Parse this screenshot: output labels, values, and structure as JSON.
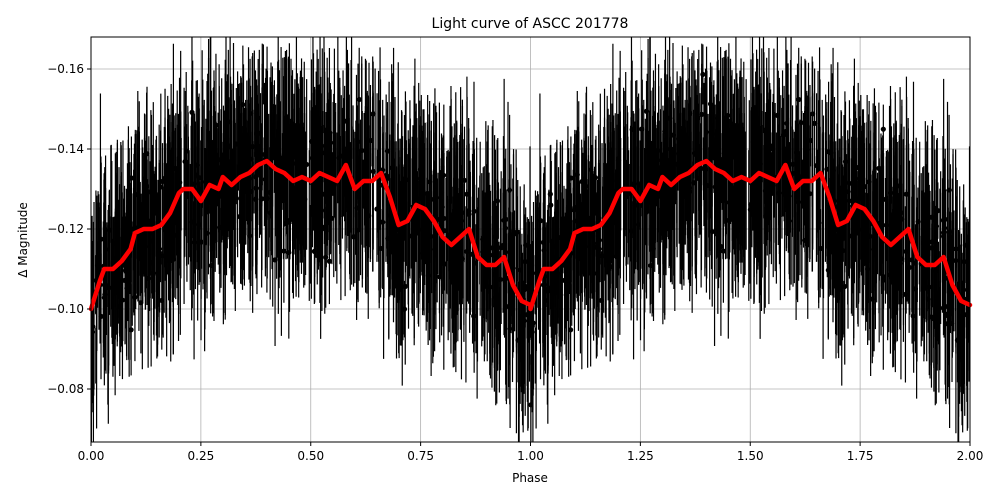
{
  "chart_data": {
    "type": "scatter",
    "title": "Light curve of ASCC 201778",
    "xlabel": "Phase",
    "ylabel": "Δ Magnitude",
    "xlim": [
      0.0,
      2.0
    ],
    "ylim": [
      -0.168,
      -0.067
    ],
    "y_inverted": true,
    "grid": true,
    "x_ticks": [
      "0.00",
      "0.25",
      "0.50",
      "0.75",
      "1.00",
      "1.25",
      "1.50",
      "1.75",
      "2.00"
    ],
    "x_tick_values": [
      0.0,
      0.25,
      0.5,
      0.75,
      1.0,
      1.25,
      1.5,
      1.75,
      2.0
    ],
    "y_ticks": [
      "−0.16",
      "−0.14",
      "−0.12",
      "−0.10",
      "−0.08"
    ],
    "y_tick_values": [
      -0.16,
      -0.14,
      -0.12,
      -0.1,
      -0.08
    ],
    "series": [
      {
        "name": "observations",
        "style": "black points with error bars",
        "color": "#000000",
        "description": "Dense phase-folded photometry, magnitudes spread roughly -0.17 to -0.07 with large error bars, repeated over two phase cycles"
      },
      {
        "name": "binned model",
        "style": "thick red line",
        "color": "#ff0000",
        "x": [
          0.0,
          0.02,
          0.03,
          0.05,
          0.07,
          0.09,
          0.1,
          0.12,
          0.14,
          0.16,
          0.18,
          0.2,
          0.21,
          0.23,
          0.25,
          0.27,
          0.29,
          0.3,
          0.32,
          0.34,
          0.36,
          0.38,
          0.4,
          0.42,
          0.44,
          0.46,
          0.48,
          0.5,
          0.52,
          0.54,
          0.56,
          0.58,
          0.6,
          0.62,
          0.64,
          0.66,
          0.68,
          0.7,
          0.72,
          0.74,
          0.76,
          0.78,
          0.8,
          0.82,
          0.84,
          0.86,
          0.88,
          0.9,
          0.92,
          0.94,
          0.96,
          0.98,
          1.0
        ],
        "values": [
          -0.1,
          -0.107,
          -0.11,
          -0.11,
          -0.112,
          -0.115,
          -0.119,
          -0.12,
          -0.12,
          -0.121,
          -0.124,
          -0.129,
          -0.13,
          -0.13,
          -0.127,
          -0.131,
          -0.13,
          -0.133,
          -0.131,
          -0.133,
          -0.134,
          -0.136,
          -0.137,
          -0.135,
          -0.134,
          -0.132,
          -0.133,
          -0.132,
          -0.134,
          -0.133,
          -0.132,
          -0.136,
          -0.13,
          -0.132,
          -0.132,
          -0.134,
          -0.128,
          -0.121,
          -0.122,
          -0.126,
          -0.125,
          -0.122,
          -0.118,
          -0.116,
          -0.118,
          -0.12,
          -0.113,
          -0.111,
          -0.111,
          -0.113,
          -0.106,
          -0.102,
          -0.101
        ],
        "note": "curve repeats identically for phase 1.00–2.00"
      }
    ]
  }
}
